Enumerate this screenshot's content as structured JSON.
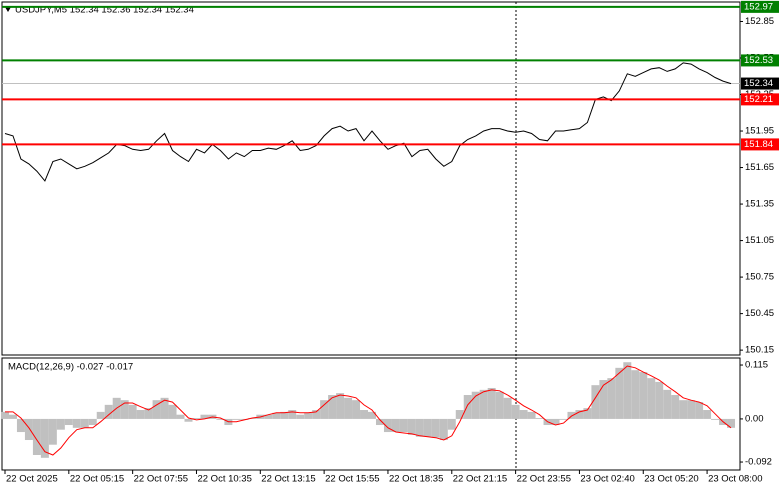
{
  "chart_data": [
    {
      "type": "line",
      "title": "USDJPY,M5  152.34 152.36 152.34 152.34",
      "color": "#000000",
      "x": [
        0,
        4,
        8,
        12,
        16,
        20,
        24,
        28,
        32,
        36,
        40,
        44,
        48,
        52,
        56,
        60,
        64,
        68,
        72,
        76,
        80,
        84,
        88,
        92,
        96,
        100,
        104,
        108,
        112,
        116,
        120,
        124,
        128,
        132,
        136,
        140,
        144,
        148,
        152,
        156,
        160,
        164,
        168,
        172,
        176,
        180,
        184,
        188,
        192,
        196,
        200,
        204,
        208,
        212,
        216,
        220,
        224,
        228,
        232,
        236,
        240,
        244,
        248,
        252,
        256,
        260,
        264,
        268,
        272,
        276,
        280,
        284,
        288,
        292,
        296,
        300,
        304,
        308,
        312,
        316,
        320,
        324,
        328,
        332,
        336,
        340,
        344,
        348,
        352,
        356,
        360,
        364
      ],
      "values": [
        151.93,
        151.91,
        151.72,
        151.68,
        151.62,
        151.54,
        151.7,
        151.72,
        151.68,
        151.64,
        151.66,
        151.69,
        151.73,
        151.77,
        151.84,
        151.83,
        151.8,
        151.79,
        151.8,
        151.87,
        151.93,
        151.79,
        151.74,
        151.7,
        151.8,
        151.77,
        151.84,
        151.79,
        151.72,
        151.77,
        151.74,
        151.79,
        151.79,
        151.81,
        151.8,
        151.83,
        151.87,
        151.79,
        151.8,
        151.83,
        151.91,
        151.97,
        151.99,
        151.95,
        151.97,
        151.87,
        151.95,
        151.87,
        151.8,
        151.83,
        151.85,
        151.74,
        151.79,
        151.8,
        151.72,
        151.66,
        151.7,
        151.83,
        151.88,
        151.91,
        151.95,
        151.97,
        151.97,
        151.95,
        151.94,
        151.95,
        151.93,
        151.88,
        151.87,
        151.95,
        151.95,
        151.96,
        151.97,
        152.02,
        152.21,
        152.23,
        152.2,
        152.28,
        152.42,
        152.4,
        152.43,
        152.46,
        152.47,
        152.44,
        152.46,
        152.51,
        152.5,
        152.46,
        152.43,
        152.39,
        152.36,
        152.34
      ],
      "xlim": [
        -1.5,
        368.5
      ],
      "ylim": [
        150.11,
        153.01
      ],
      "yticks": [
        152.85,
        152.55,
        152.25,
        151.95,
        151.65,
        151.35,
        151.05,
        150.75,
        150.45,
        150.15
      ],
      "levels": [
        {
          "value": 152.97,
          "color": "#008000"
        },
        {
          "value": 152.53,
          "color": "#008000"
        },
        {
          "value": 152.21,
          "color": "#ff0000"
        },
        {
          "value": 151.84,
          "color": "#ff0000"
        }
      ],
      "last_price": 152.34
    },
    {
      "type": "macd",
      "title": "MACD(12,26,9) -0.027 -0.017",
      "xlim": [
        -1.5,
        368.5
      ],
      "ylim": [
        -0.109,
        0.13
      ],
      "yticks": [
        0.115,
        {
          "value": 0,
          "label": "0.00"
        },
        -0.092
      ],
      "xticks": [
        {
          "value": 0,
          "label": "22 Oct 2025"
        },
        {
          "value": 32,
          "label": "22 Oct 05:15"
        },
        {
          "value": 64,
          "label": "22 Oct 07:55"
        },
        {
          "value": 96,
          "label": "22 Oct 10:35"
        },
        {
          "value": 128,
          "label": "22 Oct 13:15"
        },
        {
          "value": 160,
          "label": "22 Oct 15:55"
        },
        {
          "value": 192,
          "label": "22 Oct 18:35"
        },
        {
          "value": 224,
          "label": "22 Oct 21:15"
        },
        {
          "value": 256,
          "label": "22 Oct 23:55"
        },
        {
          "value": 288,
          "label": "23 Oct 02:40"
        },
        {
          "value": 320,
          "label": "23 Oct 05:20"
        },
        {
          "value": 352,
          "label": "23 Oct 08:00"
        }
      ],
      "series": [
        {
          "style": "bar",
          "color": "#c0c0c0",
          "values": [
            0.015,
            0.009,
            -0.028,
            -0.045,
            -0.077,
            -0.083,
            -0.055,
            -0.023,
            -0.013,
            -0.019,
            -0.019,
            -0.013,
            0.015,
            0.03,
            0.045,
            0.04,
            0.03,
            0.019,
            0.023,
            0.04,
            0.045,
            0.03,
            0.009,
            -0.006,
            0.002,
            0.009,
            0.009,
            -0.002,
            -0.013,
            -0.002,
            -0.002,
            0.002,
            0.009,
            0.009,
            0.013,
            0.015,
            0.019,
            0.009,
            0.013,
            0.019,
            0.04,
            0.051,
            0.055,
            0.045,
            0.04,
            0.019,
            0.015,
            -0.013,
            -0.028,
            -0.028,
            -0.028,
            -0.034,
            -0.038,
            -0.038,
            -0.04,
            -0.045,
            -0.023,
            0.019,
            0.051,
            0.058,
            0.062,
            0.066,
            0.058,
            0.045,
            0.03,
            0.019,
            0.015,
            0.002,
            -0.013,
            -0.013,
            -0.002,
            0.015,
            0.019,
            0.023,
            0.072,
            0.083,
            0.087,
            0.109,
            0.121,
            0.104,
            0.1,
            0.087,
            0.079,
            0.062,
            0.051,
            0.04,
            0.04,
            0.036,
            0.019,
            -0.002,
            -0.013,
            -0.019
          ]
        },
        {
          "style": "line",
          "color": "#ff0000",
          "values": [
            0.015,
            0.015,
            0.002,
            -0.019,
            -0.045,
            -0.07,
            -0.077,
            -0.062,
            -0.04,
            -0.023,
            -0.019,
            -0.019,
            -0.006,
            0.009,
            0.023,
            0.034,
            0.034,
            0.026,
            0.019,
            0.03,
            0.04,
            0.036,
            0.019,
            0.002,
            -0.002,
            0.0,
            0.004,
            0.002,
            -0.006,
            -0.006,
            -0.002,
            0.002,
            0.004,
            0.009,
            0.013,
            0.013,
            0.015,
            0.013,
            0.013,
            0.015,
            0.03,
            0.045,
            0.051,
            0.049,
            0.045,
            0.03,
            0.019,
            -0.002,
            -0.019,
            -0.028,
            -0.03,
            -0.032,
            -0.036,
            -0.038,
            -0.04,
            -0.045,
            -0.036,
            -0.006,
            0.03,
            0.049,
            0.058,
            0.062,
            0.06,
            0.051,
            0.04,
            0.028,
            0.019,
            0.009,
            -0.006,
            -0.013,
            -0.009,
            0.006,
            0.015,
            0.019,
            0.045,
            0.072,
            0.083,
            0.098,
            0.113,
            0.109,
            0.1,
            0.092,
            0.083,
            0.07,
            0.058,
            0.045,
            0.04,
            0.036,
            0.028,
            0.011,
            -0.006,
            -0.019
          ]
        }
      ]
    }
  ]
}
